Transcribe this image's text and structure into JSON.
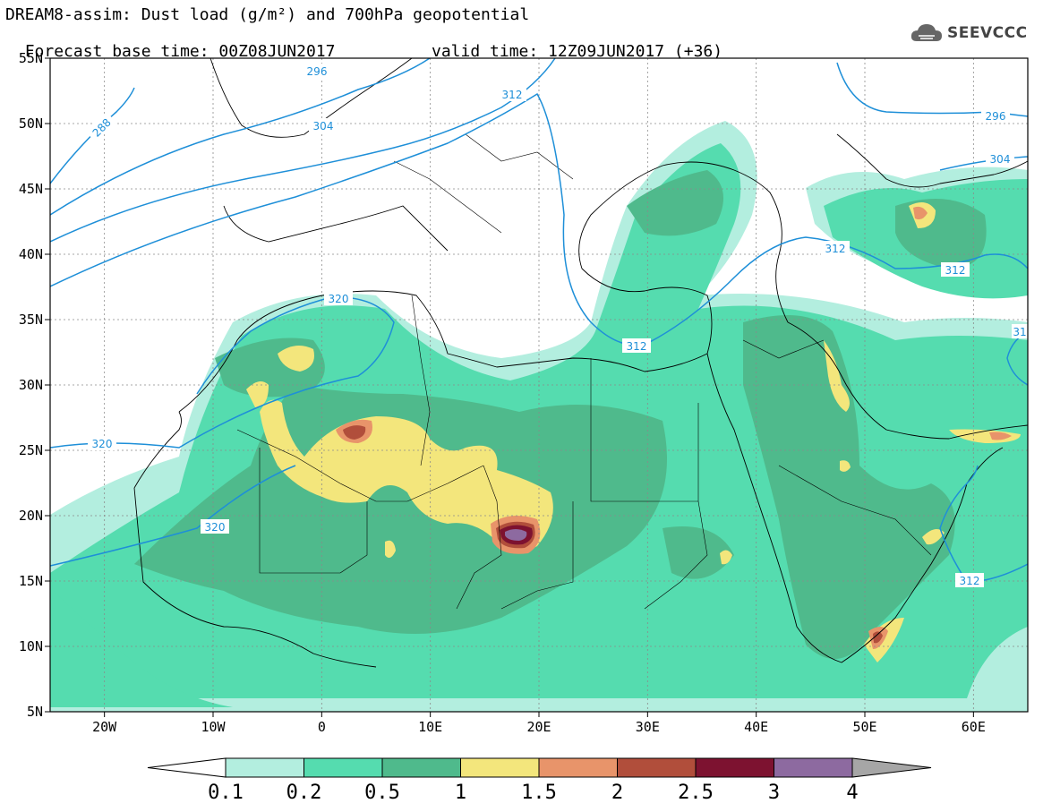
{
  "title": {
    "line1": "DREAM8-assim: Dust load (g/m²) and 700hPa geopotential",
    "line2_left": "Forecast base time: 00Z08JUN2017",
    "line2_right": "valid time: 12Z09JUN2017 (+36)"
  },
  "logo": {
    "text": "SEEVCCC",
    "icon": "cloud-icon"
  },
  "map": {
    "lat_labels": [
      "55N",
      "50N",
      "45N",
      "40N",
      "35N",
      "30N",
      "25N",
      "20N",
      "15N",
      "10N",
      "5N"
    ],
    "lat_values": [
      55,
      50,
      45,
      40,
      35,
      30,
      25,
      20,
      15,
      10,
      5
    ],
    "lon_labels": [
      "20W",
      "10W",
      "0",
      "10E",
      "20E",
      "30E",
      "40E",
      "50E",
      "60E"
    ],
    "lon_values": [
      -20,
      -10,
      0,
      10,
      20,
      30,
      40,
      50,
      60
    ],
    "extent": {
      "lon_min": -25,
      "lon_max": 65,
      "lat_min": 5,
      "lat_max": 55
    },
    "grid": "dotted",
    "contour_color": "#1e8fd8",
    "contour_labels": [
      "296",
      "288",
      "304",
      "312",
      "320",
      "320",
      "320",
      "296",
      "304",
      "312",
      "312",
      "312",
      "312",
      "31"
    ]
  },
  "colorbar": {
    "ticks": [
      "0.1",
      "0.2",
      "0.5",
      "1",
      "1.5",
      "2",
      "2.5",
      "3",
      "4"
    ],
    "colors": [
      "#b3eedf",
      "#55dcaf",
      "#4fba8c",
      "#f3e67c",
      "#e8946a",
      "#b14e3b",
      "#7d1230",
      "#8d6aa0"
    ],
    "under_color": "#ffffff",
    "over_color": "#a6a6a6"
  }
}
